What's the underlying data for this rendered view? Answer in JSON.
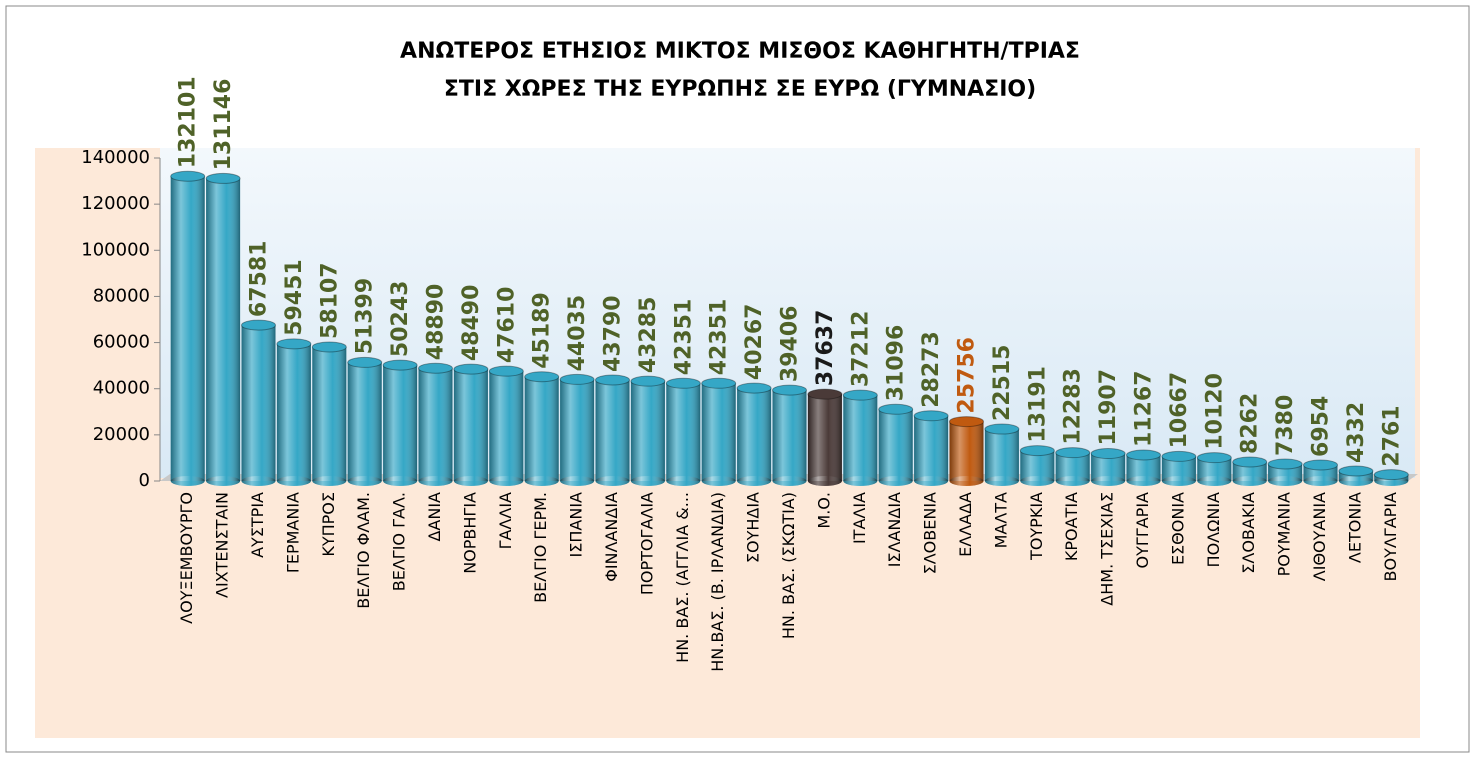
{
  "chart_data": {
    "type": "bar",
    "title": [
      "ΑΝΩΤΕΡΟΣ ΕΤΗΣΙΟΣ ΜΙΚΤΟΣ ΜΙΣΘΟΣ ΚΑΘΗΓΗΤΗ/ΤΡΙΑΣ",
      "ΣΤΙΣ ΧΩΡΕΣ ΤΗΣ ΕΥΡΩΠΗΣ ΣΕ ΕΥΡΩ (ΓΥΜΝΑΣΙΟ)"
    ],
    "categories": [
      "ΛΟΥΞΕΜΒΟΥΡΓΟ",
      "ΛΙΧΤΕΝΣΤΑΙΝ",
      "ΑΥΣΤΡΙΑ",
      "ΓΕΡΜΑΝΙΑ",
      "ΚΥΠΡΟΣ",
      "ΒΕΛΓΙΟ ΦΛΑΜ.",
      "ΒΕΛΓΙΟ ΓΑΛ.",
      "ΔΑΝΙΑ",
      "ΝΟΡΒΗΓΙΑ",
      "ΓΑΛΛΙΑ",
      "ΒΕΛΓΙΟ ΓΕΡΜ.",
      "ΙΣΠΑΝΙΑ",
      "ΦΙΝΛΑΝΔΙΑ",
      "ΠΟΡΤΟΓΑΛΙΑ",
      "ΗΝ. ΒΑΣ. (ΑΓΓΛΙΑ &...",
      "ΗΝ.ΒΑΣ. (Β. ΙΡΛΑΝΔΙΑ)",
      "ΣΟΥΗΔΙΑ",
      "ΗΝ. ΒΑΣ. (ΣΚΩΤΙΑ)",
      "Μ.Ο.",
      "ΙΤΑΛΙΑ",
      "ΙΣΛΑΝΔΙΑ",
      "ΣΛΟΒΕΝΙΑ",
      "ΕΛΛΑΔΑ",
      "ΜΑΛΤΑ",
      "ΤΟΥΡΚΙΑ",
      "ΚΡΟΑΤΙΑ",
      "ΔΗΜ. ΤΣΕΧΙΑΣ",
      "ΟΥΓΓΑΡΙΑ",
      "ΕΣΘΟΝΙΑ",
      "ΠΟΛΩΝΙΑ",
      "ΣΛΟΒΑΚΙΑ",
      "ΡΟΥΜΑΝΙΑ",
      "ΛΙΘΟΥΑΝΙΑ",
      "ΛΕΤΟΝΙΑ",
      "ΒΟΥΛΓΑΡΙΑ"
    ],
    "values": [
      132101,
      131146,
      67581,
      59451,
      58107,
      51399,
      50243,
      48890,
      48490,
      47610,
      45189,
      44035,
      43790,
      43285,
      42351,
      42351,
      40267,
      39406,
      37637,
      37212,
      31096,
      28273,
      25756,
      22515,
      13191,
      12283,
      11907,
      11267,
      10667,
      10120,
      8262,
      7380,
      6954,
      4332,
      2761
    ],
    "colors": [
      "#35a7c6",
      "#35a7c6",
      "#35a7c6",
      "#35a7c6",
      "#35a7c6",
      "#35a7c6",
      "#35a7c6",
      "#35a7c6",
      "#35a7c6",
      "#35a7c6",
      "#35a7c6",
      "#35a7c6",
      "#35a7c6",
      "#35a7c6",
      "#35a7c6",
      "#35a7c6",
      "#35a7c6",
      "#35a7c6",
      "#4a3a38",
      "#35a7c6",
      "#35a7c6",
      "#35a7c6",
      "#c05a10",
      "#35a7c6",
      "#35a7c6",
      "#35a7c6",
      "#35a7c6",
      "#35a7c6",
      "#35a7c6",
      "#35a7c6",
      "#35a7c6",
      "#35a7c6",
      "#35a7c6",
      "#35a7c6",
      "#35a7c6"
    ],
    "label_colors": [
      "#4f6228",
      "#4f6228",
      "#4f6228",
      "#4f6228",
      "#4f6228",
      "#4f6228",
      "#4f6228",
      "#4f6228",
      "#4f6228",
      "#4f6228",
      "#4f6228",
      "#4f6228",
      "#4f6228",
      "#4f6228",
      "#4f6228",
      "#4f6228",
      "#4f6228",
      "#4f6228",
      "#1a1a1a",
      "#4f6228",
      "#4f6228",
      "#4f6228",
      "#c05a10",
      "#4f6228",
      "#4f6228",
      "#4f6228",
      "#4f6228",
      "#4f6228",
      "#4f6228",
      "#4f6228",
      "#4f6228",
      "#4f6228",
      "#4f6228",
      "#4f6228",
      "#4f6228"
    ],
    "ylim": [
      0,
      140000
    ],
    "yticks": [
      0,
      20000,
      40000,
      60000,
      80000,
      100000,
      120000,
      140000
    ],
    "grid": false
  }
}
